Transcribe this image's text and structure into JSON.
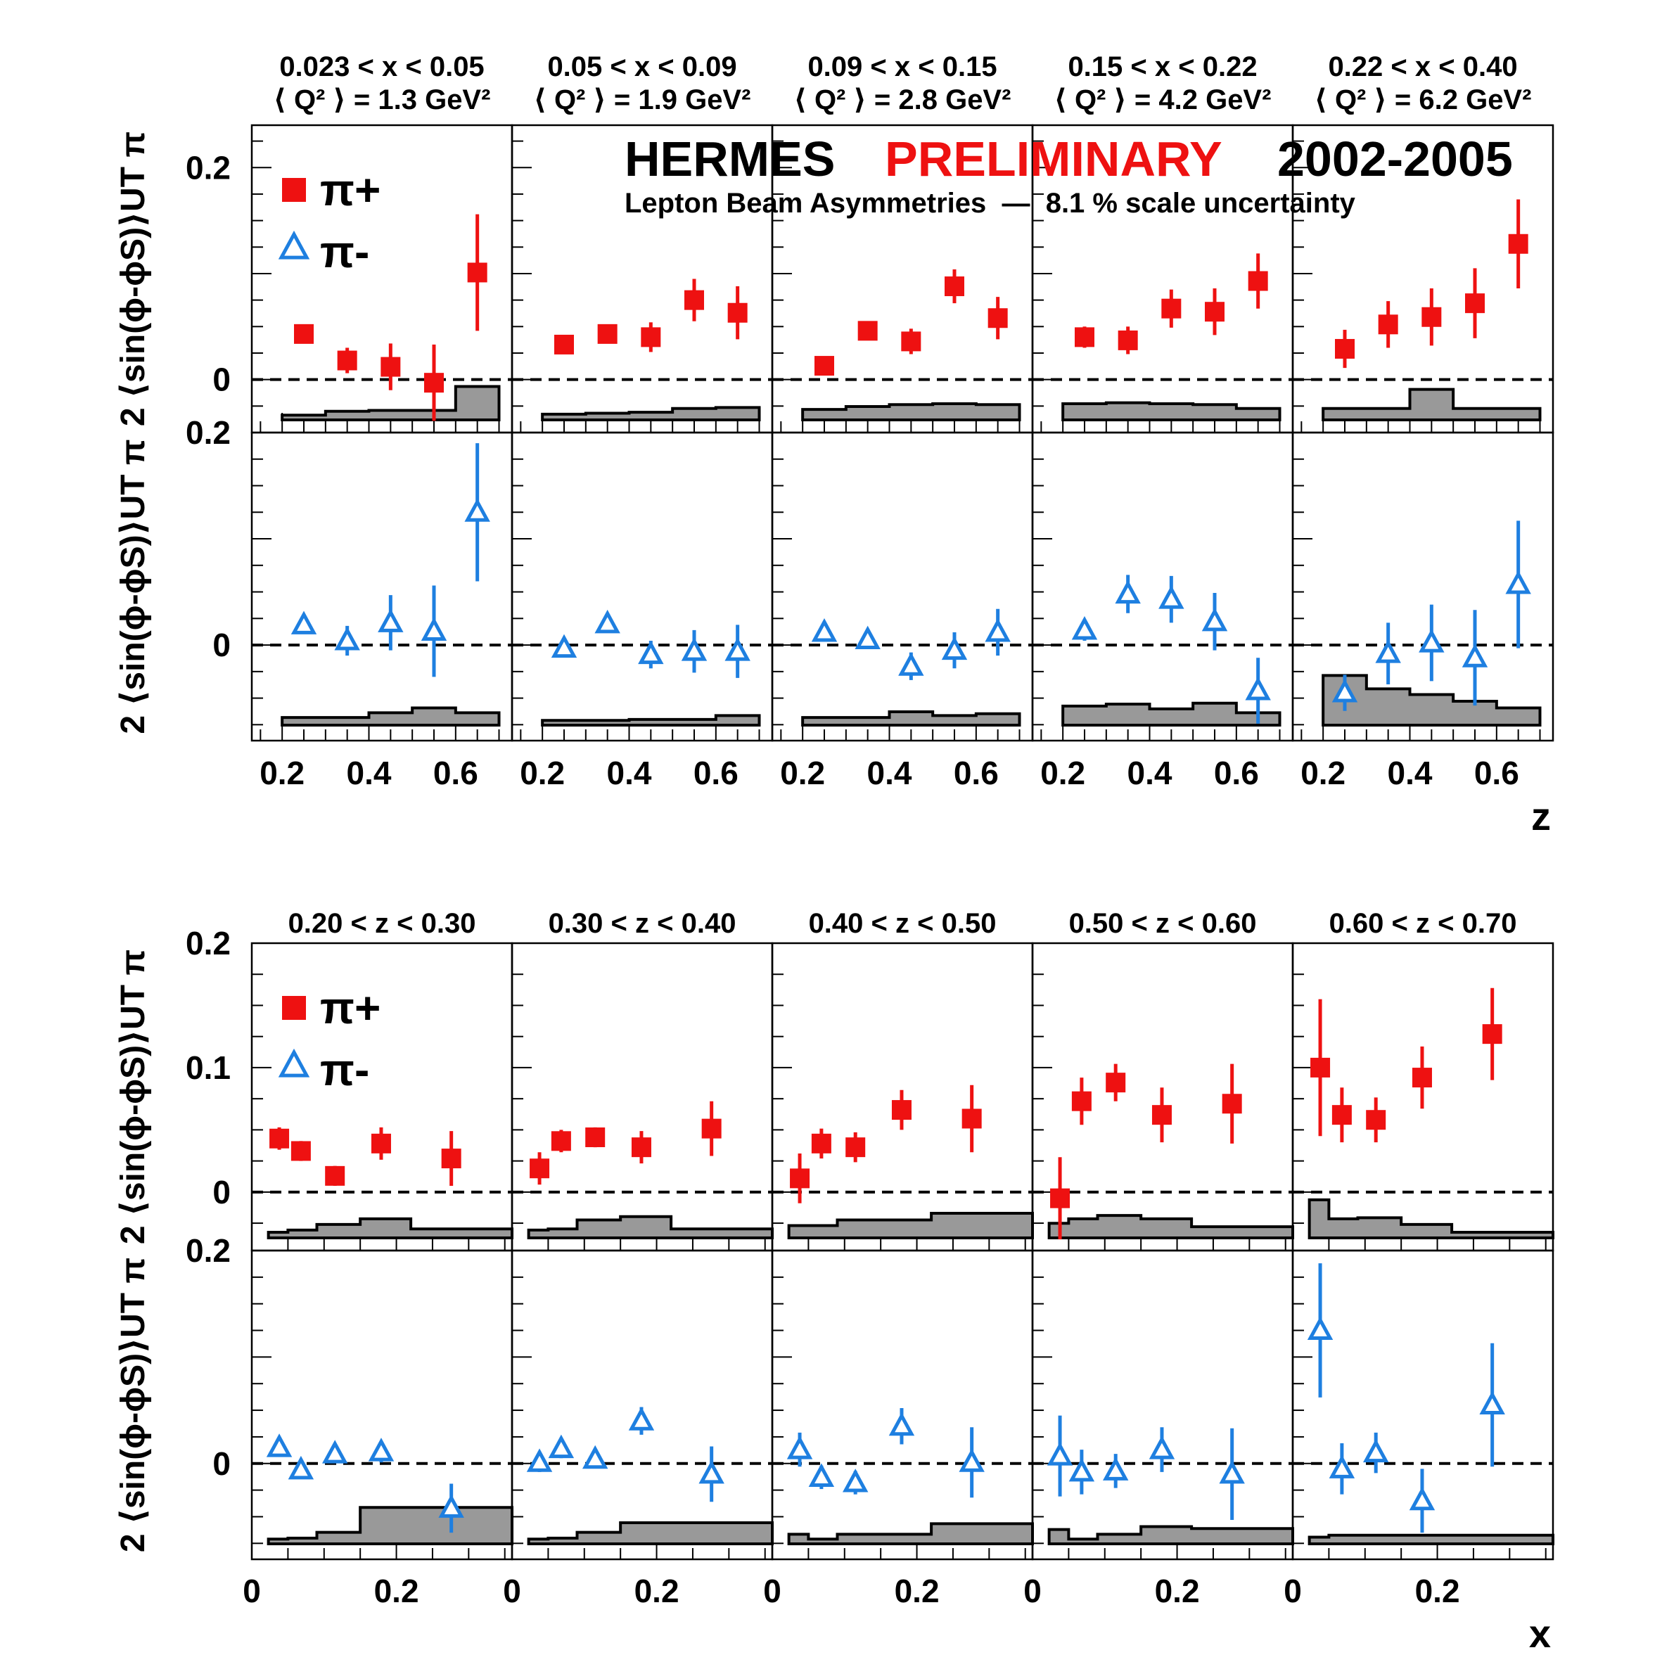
{
  "header": {
    "hermes": "HERMES",
    "preliminary": "PRELIMINARY",
    "years": "2002-2005",
    "subtitle": "Lepton Beam Asymmetries  —  8.1 % scale uncertainty"
  },
  "colors": {
    "pi_plus": "#ee1111",
    "pi_minus": "#1e7fe0",
    "preliminary": "#ee1111",
    "systematic_band": "#999999"
  },
  "legend": {
    "pi_plus": "π+",
    "pi_minus": "π-"
  },
  "chart_data": [
    {
      "type": "scatter",
      "variable": "z",
      "xlabel": "z",
      "ylabel": "2 ⟨sin(ϕ-ϕS)⟩UT π",
      "xlim": [
        0.13,
        0.73
      ],
      "xticks": [
        "0.2",
        "0.4",
        "0.6"
      ],
      "xtick_values": [
        0.2,
        0.4,
        0.6
      ],
      "top_ylim": [
        -0.05,
        0.24
      ],
      "top_yticks": [
        "0.2",
        "0"
      ],
      "bottom_ylim": [
        -0.09,
        0.2
      ],
      "bottom_yticks": [
        "0.2",
        "0"
      ],
      "bin_edges": [
        0.2,
        0.3,
        0.4,
        0.5,
        0.6,
        0.7
      ],
      "panels": [
        {
          "label": "0.023 < x < 0.05",
          "label2": "⟨ Q² ⟩ = 1.3 GeV²",
          "pi_plus": {
            "x": [
              0.25,
              0.35,
              0.45,
              0.55,
              0.65
            ],
            "y": [
              0.043,
              0.018,
              0.012,
              -0.003,
              0.101
            ],
            "err": [
              0.005,
              0.012,
              0.022,
              0.036,
              0.055
            ]
          },
          "pi_minus": {
            "x": [
              0.25,
              0.35,
              0.45,
              0.55,
              0.65
            ],
            "y": [
              0.019,
              0.004,
              0.021,
              0.013,
              0.125
            ],
            "err": [
              0.008,
              0.014,
              0.026,
              0.043,
              0.065
            ]
          },
          "pi_plus_sys": [
            0.005,
            0.009,
            0.01,
            0.01,
            0.035
          ],
          "pi_minus_sys": [
            0.008,
            0.008,
            0.013,
            0.018,
            0.013
          ]
        },
        {
          "label": "0.05 < x < 0.09",
          "label2": "⟨ Q² ⟩ = 1.9 GeV²",
          "pi_plus": {
            "x": [
              0.25,
              0.35,
              0.45,
              0.55,
              0.65
            ],
            "y": [
              0.033,
              0.043,
              0.04,
              0.075,
              0.063
            ],
            "err": [
              0.005,
              0.009,
              0.014,
              0.02,
              0.025
            ]
          },
          "pi_minus": {
            "x": [
              0.25,
              0.35,
              0.45,
              0.55,
              0.65
            ],
            "y": [
              -0.003,
              0.02,
              -0.009,
              -0.006,
              -0.006
            ],
            "err": [
              0.008,
              0.008,
              0.013,
              0.02,
              0.025
            ]
          },
          "pi_plus_sys": [
            0.006,
            0.007,
            0.008,
            0.012,
            0.013
          ],
          "pi_minus_sys": [
            0.005,
            0.005,
            0.006,
            0.006,
            0.01
          ]
        },
        {
          "label": "0.09 < x < 0.15",
          "label2": "⟨ Q² ⟩ = 2.8 GeV²",
          "pi_plus": {
            "x": [
              0.25,
              0.35,
              0.45,
              0.55,
              0.65
            ],
            "y": [
              0.013,
              0.046,
              0.036,
              0.088,
              0.058
            ],
            "err": [
              0.005,
              0.008,
              0.012,
              0.016,
              0.02
            ]
          },
          "pi_minus": {
            "x": [
              0.25,
              0.35,
              0.45,
              0.55,
              0.65
            ],
            "y": [
              0.012,
              0.005,
              -0.02,
              -0.005,
              0.012
            ],
            "err": [
              0.007,
              0.007,
              0.013,
              0.017,
              0.022
            ]
          },
          "pi_plus_sys": [
            0.011,
            0.014,
            0.016,
            0.017,
            0.016
          ],
          "pi_minus_sys": [
            0.008,
            0.008,
            0.014,
            0.01,
            0.012
          ]
        },
        {
          "label": "0.15 < x < 0.22",
          "label2": "⟨ Q² ⟩ = 4.2 GeV²",
          "pi_plus": {
            "x": [
              0.25,
              0.35,
              0.45,
              0.55,
              0.65
            ],
            "y": [
              0.04,
              0.037,
              0.067,
              0.064,
              0.093
            ],
            "err": [
              0.01,
              0.013,
              0.018,
              0.022,
              0.026
            ]
          },
          "pi_minus": {
            "x": [
              0.25,
              0.35,
              0.45,
              0.55,
              0.65
            ],
            "y": [
              0.014,
              0.048,
              0.043,
              0.022,
              -0.043
            ],
            "err": [
              0.01,
              0.018,
              0.022,
              0.027,
              0.031
            ]
          },
          "pi_plus_sys": [
            0.017,
            0.018,
            0.017,
            0.016,
            0.012
          ],
          "pi_minus_sys": [
            0.02,
            0.022,
            0.017,
            0.023,
            0.013
          ]
        },
        {
          "label": "0.22 < x < 0.40",
          "label2": "⟨ Q² ⟩ = 6.2 GeV²",
          "pi_plus": {
            "x": [
              0.25,
              0.35,
              0.45,
              0.55,
              0.65
            ],
            "y": [
              0.029,
              0.052,
              0.059,
              0.072,
              0.128
            ],
            "err": [
              0.018,
              0.022,
              0.027,
              0.033,
              0.042
            ]
          },
          "pi_minus": {
            "x": [
              0.25,
              0.35,
              0.45,
              0.55,
              0.65
            ],
            "y": [
              -0.045,
              -0.008,
              0.002,
              -0.012,
              0.057
            ],
            "err": [
              0.017,
              0.029,
              0.036,
              0.045,
              0.06
            ]
          },
          "pi_plus_sys": [
            0.012,
            0.012,
            0.032,
            0.012,
            0.012
          ],
          "pi_minus_sys": [
            0.052,
            0.038,
            0.032,
            0.025,
            0.018
          ]
        }
      ]
    },
    {
      "type": "scatter",
      "variable": "x",
      "xlabel": "x",
      "ylabel": "2 ⟨sin(ϕ-ϕS)⟩UT π",
      "xlim": [
        0.0,
        0.36
      ],
      "xticks": [
        "0",
        "0.2"
      ],
      "xtick_values": [
        0.0,
        0.2
      ],
      "top_ylim": [
        -0.047,
        0.2
      ],
      "top_yticks": [
        "0.2",
        "0.1",
        "0"
      ],
      "bottom_ylim": [
        -0.09,
        0.2
      ],
      "bottom_yticks": [
        "0.2",
        "0"
      ],
      "bin_edges": [
        0.023,
        0.05,
        0.09,
        0.15,
        0.22,
        0.4
      ],
      "panels": [
        {
          "label": "0.20 < z < 0.30",
          "pi_plus": {
            "x": [
              0.038,
              0.068,
              0.115,
              0.179,
              0.276
            ],
            "y": [
              0.043,
              0.033,
              0.013,
              0.039,
              0.027
            ],
            "err": [
              0.009,
              0.008,
              0.008,
              0.013,
              0.022
            ]
          },
          "pi_minus": {
            "x": [
              0.038,
              0.068,
              0.115,
              0.179,
              0.276
            ],
            "y": [
              0.015,
              -0.006,
              0.009,
              0.011,
              -0.042
            ],
            "err": [
              0.007,
              0.006,
              0.007,
              0.01,
              0.023
            ]
          },
          "pi_plus_sys": [
            0.005,
            0.007,
            0.012,
            0.017,
            0.008
          ],
          "pi_minus_sys": [
            0.005,
            0.006,
            0.012,
            0.038,
            0.038
          ]
        },
        {
          "label": "0.30 < z < 0.40",
          "pi_plus": {
            "x": [
              0.038,
              0.068,
              0.115,
              0.179,
              0.276
            ],
            "y": [
              0.019,
              0.041,
              0.044,
              0.036,
              0.051
            ],
            "err": [
              0.013,
              0.009,
              0.008,
              0.013,
              0.022
            ]
          },
          "pi_minus": {
            "x": [
              0.038,
              0.068,
              0.115,
              0.179,
              0.276
            ],
            "y": [
              0.001,
              0.014,
              0.004,
              0.04,
              -0.01
            ],
            "err": [
              0.009,
              0.009,
              0.007,
              0.013,
              0.026
            ]
          },
          "pi_plus_sys": [
            0.007,
            0.008,
            0.016,
            0.019,
            0.008
          ],
          "pi_minus_sys": [
            0.005,
            0.006,
            0.012,
            0.022,
            0.022
          ]
        },
        {
          "label": "0.40 < z < 0.50",
          "pi_plus": {
            "x": [
              0.038,
              0.068,
              0.115,
              0.179,
              0.276
            ],
            "y": [
              0.011,
              0.039,
              0.036,
              0.066,
              0.059
            ],
            "err": [
              0.02,
              0.012,
              0.012,
              0.016,
              0.027
            ]
          },
          "pi_minus": {
            "x": [
              0.038,
              0.068,
              0.115,
              0.179,
              0.276
            ],
            "y": [
              0.013,
              -0.013,
              -0.018,
              0.035,
              0.001
            ],
            "err": [
              0.016,
              0.011,
              0.011,
              0.017,
              0.033
            ]
          },
          "pi_plus_sys": [
            0.011,
            0.011,
            0.016,
            0.016,
            0.022
          ],
          "pi_minus_sys": [
            0.01,
            0.005,
            0.01,
            0.01,
            0.021
          ]
        },
        {
          "label": "0.50 < z < 0.60",
          "pi_plus": {
            "x": [
              0.038,
              0.068,
              0.115,
              0.179,
              0.276
            ],
            "y": [
              -0.005,
              0.073,
              0.088,
              0.062,
              0.071
            ],
            "err": [
              0.033,
              0.019,
              0.015,
              0.022,
              0.032
            ]
          },
          "pi_minus": {
            "x": [
              0.038,
              0.068,
              0.115,
              0.179,
              0.276
            ],
            "y": [
              0.007,
              -0.008,
              -0.007,
              0.013,
              -0.01
            ],
            "err": [
              0.038,
              0.021,
              0.016,
              0.021,
              0.043
            ]
          },
          "pi_plus_sys": [
            0.013,
            0.017,
            0.02,
            0.017,
            0.01
          ],
          "pi_minus_sys": [
            0.015,
            0.005,
            0.01,
            0.018,
            0.016
          ]
        },
        {
          "label": "0.60 < z < 0.70",
          "pi_plus": {
            "x": [
              0.038,
              0.068,
              0.115,
              0.179,
              0.276
            ],
            "y": [
              0.1,
              0.062,
              0.058,
              0.092,
              0.127
            ],
            "err": [
              0.055,
              0.022,
              0.018,
              0.025,
              0.037
            ]
          },
          "pi_minus": {
            "x": [
              0.038,
              0.068,
              0.115,
              0.179,
              0.276
            ],
            "y": [
              0.125,
              -0.005,
              0.01,
              -0.035,
              0.055
            ],
            "err": [
              0.063,
              0.024,
              0.019,
              0.03,
              0.058
            ]
          },
          "pi_plus_sys": [
            0.034,
            0.017,
            0.018,
            0.012,
            0.005
          ],
          "pi_minus_sys": [
            0.007,
            0.009,
            0.009,
            0.009,
            0.009
          ]
        }
      ]
    }
  ]
}
